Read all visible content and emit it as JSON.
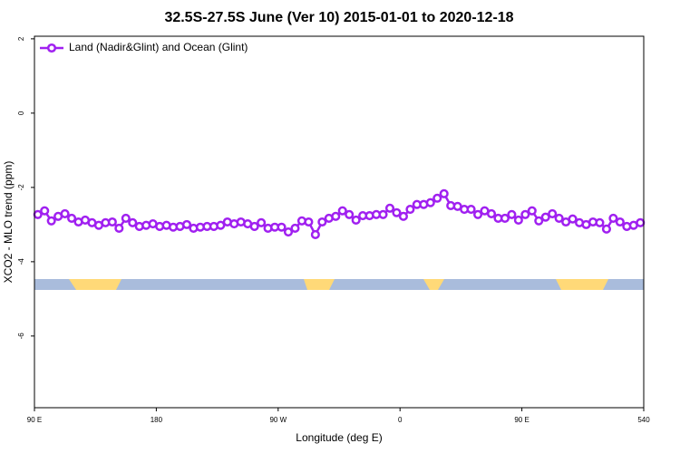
{
  "chart_data": {
    "type": "line",
    "title": "32.5S-27.5S June (Ver 10)   2015-01-01 to 2020-12-18",
    "x_label": "Longitude (deg E)",
    "y_label": "XCO2 - MLO trend (ppm)",
    "xlim": [
      90,
      540
    ],
    "ylim": [
      -7.93,
      2.07
    ],
    "xticks": [
      {
        "value": 90,
        "label": "90 E"
      },
      180,
      {
        "value": 270,
        "label": "90 W"
      },
      {
        "value": 360,
        "label": "0"
      },
      {
        "value": 450,
        "label": "90 E"
      },
      540
    ],
    "yticks": [
      2,
      0,
      -2,
      -4,
      -6
    ],
    "legend_position": "top-left",
    "x": [
      92.5,
      97.5,
      102.5,
      107.5,
      112.5,
      117.5,
      122.5,
      127.5,
      132.5,
      137.5,
      142.5,
      147.5,
      152.5,
      157.5,
      162.5,
      167.5,
      172.5,
      177.5,
      182.5,
      187.5,
      192.5,
      197.5,
      202.5,
      207.5,
      212.5,
      217.5,
      222.5,
      227.5,
      232.5,
      237.5,
      242.5,
      247.5,
      252.5,
      257.5,
      262.5,
      267.5,
      272.5,
      277.5,
      282.5,
      287.5,
      292.5,
      297.5,
      302.5,
      307.5,
      312.5,
      317.5,
      322.5,
      327.5,
      332.5,
      337.5,
      342.5,
      347.5,
      352.5,
      357.5,
      362.5,
      367.5,
      372.5,
      377.5,
      382.5,
      387.5,
      392.5,
      397.5,
      402.5,
      407.5,
      412.5,
      417.5,
      422.5,
      427.5,
      432.5,
      437.5,
      442.5,
      447.5,
      452.5,
      457.5,
      462.5,
      467.5,
      472.5,
      477.5,
      482.5,
      487.5,
      492.5,
      497.5,
      502.5,
      507.5,
      512.5,
      517.5,
      522.5,
      527.5,
      532.5,
      537.5
    ],
    "series": [
      {
        "name": "Land (Nadir&Glint) and Ocean (Glint)",
        "color": "#a020f0",
        "values": [
          -2.73,
          -2.63,
          -2.9,
          -2.78,
          -2.71,
          -2.83,
          -2.93,
          -2.88,
          -2.95,
          -3.02,
          -2.95,
          -2.93,
          -3.1,
          -2.83,
          -2.95,
          -3.05,
          -3.02,
          -2.98,
          -3.05,
          -3.02,
          -3.07,
          -3.05,
          -3.0,
          -3.1,
          -3.07,
          -3.05,
          -3.05,
          -3.02,
          -2.93,
          -2.98,
          -2.93,
          -2.98,
          -3.05,
          -2.95,
          -3.1,
          -3.07,
          -3.07,
          -3.2,
          -3.1,
          -2.9,
          -2.93,
          -3.27,
          -2.93,
          -2.83,
          -2.78,
          -2.63,
          -2.73,
          -2.88,
          -2.76,
          -2.76,
          -2.73,
          -2.73,
          -2.56,
          -2.68,
          -2.78,
          -2.59,
          -2.46,
          -2.46,
          -2.41,
          -2.29,
          -2.17,
          -2.49,
          -2.51,
          -2.59,
          -2.59,
          -2.73,
          -2.63,
          -2.71,
          -2.83,
          -2.83,
          -2.73,
          -2.88,
          -2.73,
          -2.63,
          -2.9,
          -2.8,
          -2.71,
          -2.83,
          -2.93,
          -2.85,
          -2.95,
          -3.0,
          -2.93,
          -2.95,
          -3.12,
          -2.83,
          -2.93,
          -3.05,
          -3.02,
          -2.95
        ]
      }
    ]
  }
}
